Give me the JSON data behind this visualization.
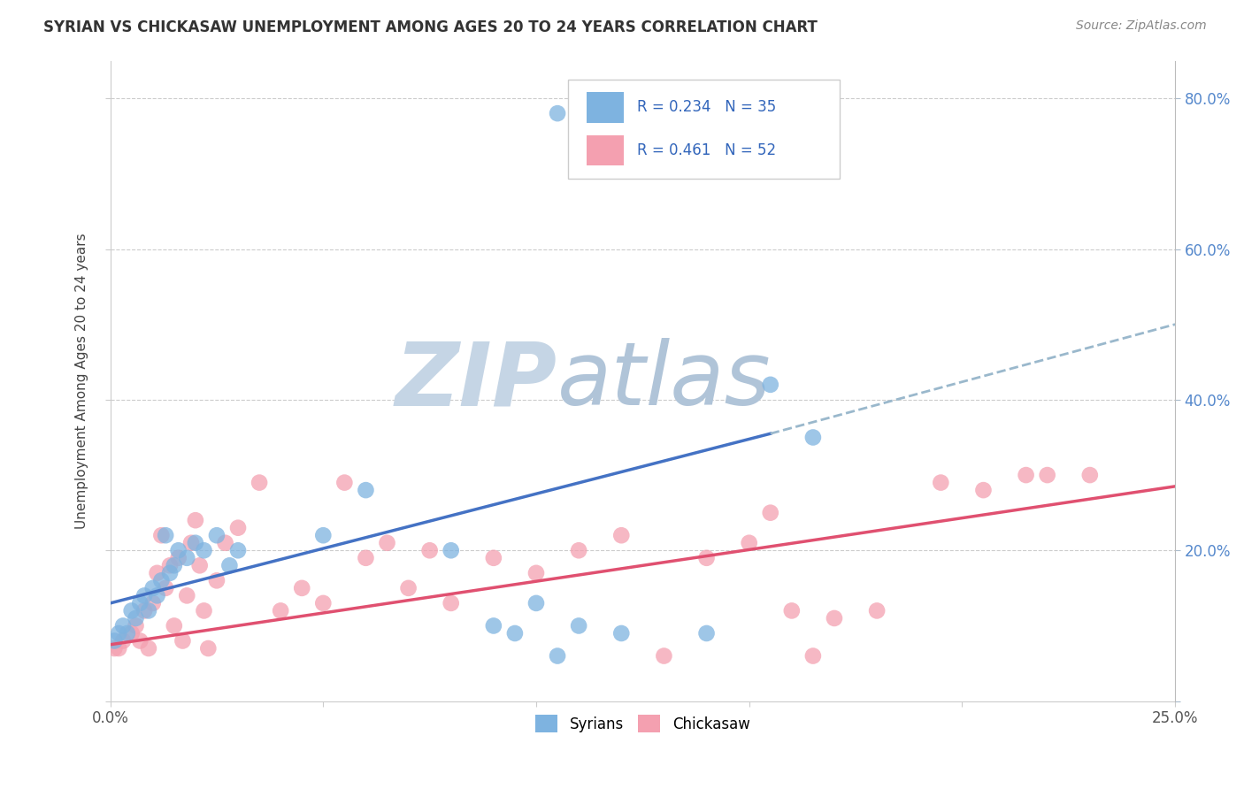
{
  "title": "SYRIAN VS CHICKASAW UNEMPLOYMENT AMONG AGES 20 TO 24 YEARS CORRELATION CHART",
  "source": "Source: ZipAtlas.com",
  "ylabel": "Unemployment Among Ages 20 to 24 years",
  "xlim": [
    0.0,
    0.25
  ],
  "ylim": [
    0.0,
    0.85
  ],
  "xticks": [
    0.0,
    0.05,
    0.1,
    0.15,
    0.2,
    0.25
  ],
  "xticklabels": [
    "0.0%",
    "",
    "",
    "",
    "",
    "25.0%"
  ],
  "yticks": [
    0.0,
    0.2,
    0.4,
    0.6,
    0.8
  ],
  "yticklabels_right": [
    "",
    "20.0%",
    "40.0%",
    "60.0%",
    "80.0%"
  ],
  "syrian_color": "#7EB3E0",
  "chickasaw_color": "#F4A0B0",
  "syrian_R": 0.234,
  "syrian_N": 35,
  "chickasaw_R": 0.461,
  "chickasaw_N": 52,
  "legend_label_syrian": "Syrians",
  "legend_label_chickasaw": "Chickasaw",
  "syrian_points": [
    [
      0.001,
      0.08
    ],
    [
      0.002,
      0.09
    ],
    [
      0.003,
      0.1
    ],
    [
      0.004,
      0.09
    ],
    [
      0.005,
      0.12
    ],
    [
      0.006,
      0.11
    ],
    [
      0.007,
      0.13
    ],
    [
      0.008,
      0.14
    ],
    [
      0.009,
      0.12
    ],
    [
      0.01,
      0.15
    ],
    [
      0.011,
      0.14
    ],
    [
      0.012,
      0.16
    ],
    [
      0.013,
      0.22
    ],
    [
      0.014,
      0.17
    ],
    [
      0.015,
      0.18
    ],
    [
      0.016,
      0.2
    ],
    [
      0.018,
      0.19
    ],
    [
      0.02,
      0.21
    ],
    [
      0.022,
      0.2
    ],
    [
      0.025,
      0.22
    ],
    [
      0.028,
      0.18
    ],
    [
      0.03,
      0.2
    ],
    [
      0.05,
      0.22
    ],
    [
      0.06,
      0.28
    ],
    [
      0.08,
      0.2
    ],
    [
      0.09,
      0.1
    ],
    [
      0.095,
      0.09
    ],
    [
      0.1,
      0.13
    ],
    [
      0.105,
      0.06
    ],
    [
      0.11,
      0.1
    ],
    [
      0.12,
      0.09
    ],
    [
      0.14,
      0.09
    ],
    [
      0.155,
      0.42
    ],
    [
      0.165,
      0.35
    ],
    [
      0.105,
      0.78
    ]
  ],
  "chickasaw_points": [
    [
      0.001,
      0.07
    ],
    [
      0.002,
      0.07
    ],
    [
      0.003,
      0.08
    ],
    [
      0.005,
      0.09
    ],
    [
      0.006,
      0.1
    ],
    [
      0.007,
      0.08
    ],
    [
      0.008,
      0.12
    ],
    [
      0.009,
      0.07
    ],
    [
      0.01,
      0.13
    ],
    [
      0.011,
      0.17
    ],
    [
      0.012,
      0.22
    ],
    [
      0.013,
      0.15
    ],
    [
      0.014,
      0.18
    ],
    [
      0.015,
      0.1
    ],
    [
      0.016,
      0.19
    ],
    [
      0.017,
      0.08
    ],
    [
      0.018,
      0.14
    ],
    [
      0.019,
      0.21
    ],
    [
      0.02,
      0.24
    ],
    [
      0.021,
      0.18
    ],
    [
      0.022,
      0.12
    ],
    [
      0.023,
      0.07
    ],
    [
      0.025,
      0.16
    ],
    [
      0.027,
      0.21
    ],
    [
      0.03,
      0.23
    ],
    [
      0.035,
      0.29
    ],
    [
      0.04,
      0.12
    ],
    [
      0.045,
      0.15
    ],
    [
      0.05,
      0.13
    ],
    [
      0.055,
      0.29
    ],
    [
      0.06,
      0.19
    ],
    [
      0.065,
      0.21
    ],
    [
      0.07,
      0.15
    ],
    [
      0.075,
      0.2
    ],
    [
      0.08,
      0.13
    ],
    [
      0.09,
      0.19
    ],
    [
      0.1,
      0.17
    ],
    [
      0.11,
      0.2
    ],
    [
      0.12,
      0.22
    ],
    [
      0.13,
      0.06
    ],
    [
      0.14,
      0.19
    ],
    [
      0.15,
      0.21
    ],
    [
      0.155,
      0.25
    ],
    [
      0.16,
      0.12
    ],
    [
      0.165,
      0.06
    ],
    [
      0.17,
      0.11
    ],
    [
      0.18,
      0.12
    ],
    [
      0.195,
      0.29
    ],
    [
      0.205,
      0.28
    ],
    [
      0.215,
      0.3
    ],
    [
      0.22,
      0.3
    ],
    [
      0.23,
      0.3
    ]
  ],
  "background_color": "#ffffff",
  "grid_color": "#cccccc",
  "watermark_zip_color": "#c8d8e8",
  "watermark_atlas_color": "#b8c8d8",
  "trendline_syrian_color": "#4472c4",
  "trendline_chickasaw_color": "#e05070",
  "trendline_extend_color": "#9ab8cc",
  "syrian_trend_x0": 0.0,
  "syrian_trend_y0": 0.13,
  "syrian_trend_x1": 0.155,
  "syrian_trend_y1": 0.355,
  "syrian_trend_dash_x1": 0.25,
  "syrian_trend_dash_y1": 0.5,
  "chickasaw_trend_x0": 0.0,
  "chickasaw_trend_y0": 0.075,
  "chickasaw_trend_x1": 0.25,
  "chickasaw_trend_y1": 0.285
}
